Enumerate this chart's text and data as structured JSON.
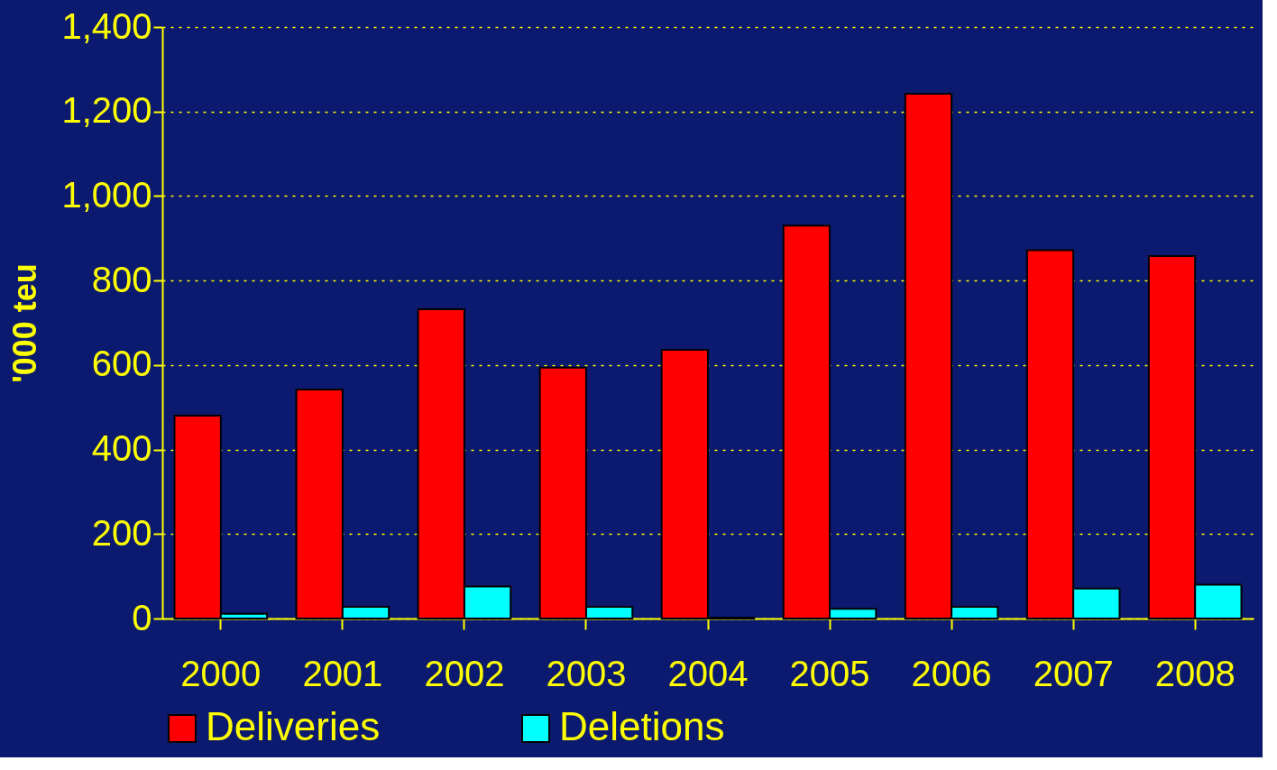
{
  "chart_data": {
    "type": "bar",
    "ylabel": "'000 teu",
    "categories": [
      "2000",
      "2001",
      "2002",
      "2003",
      "2004",
      "2005",
      "2006",
      "2007",
      "2008"
    ],
    "series": [
      {
        "name": "Deliveries",
        "color": "#ff0000",
        "values": [
          480,
          542,
          732,
          594,
          636,
          930,
          1242,
          872,
          858
        ]
      },
      {
        "name": "Deletions",
        "color": "#00ffff",
        "values": [
          11,
          28,
          76,
          28,
          2,
          23,
          28,
          71,
          80
        ]
      }
    ],
    "ylim": [
      0,
      1400
    ],
    "yticks": [
      0,
      200,
      400,
      600,
      800,
      {
        "value": 1000,
        "label": "1,000"
      },
      {
        "value": 1200,
        "label": "1,200"
      },
      {
        "value": 1400,
        "label": "1,400"
      }
    ],
    "grid": "y",
    "legend": "bottom"
  }
}
